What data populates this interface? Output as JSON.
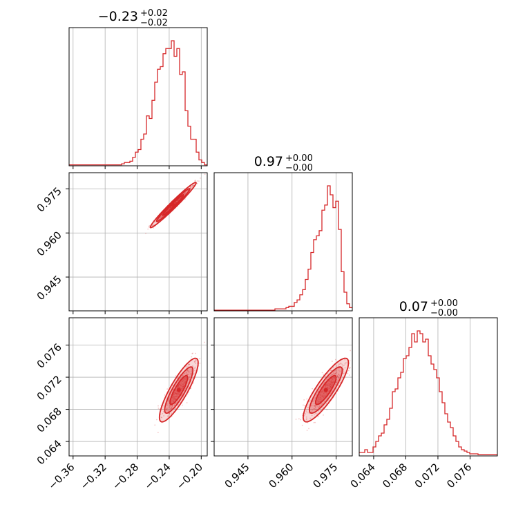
{
  "chart_data": {
    "type": "corner",
    "color": "#d62728",
    "grid": true,
    "parameters": [
      {
        "title_value": "−0.23",
        "title_plus": "+0.02",
        "title_minus": "−0.02",
        "range": [
          -0.365,
          -0.1925
        ],
        "ticks": [
          -0.36,
          -0.32,
          -0.28,
          -0.24,
          -0.2
        ],
        "tick_labels": [
          "−0.36",
          "−0.32",
          "−0.28",
          "−0.24",
          "−0.20"
        ]
      },
      {
        "title_value": "0.97",
        "title_plus": "+0.00",
        "title_minus": "−0.00",
        "range": [
          0.9335,
          0.9805
        ],
        "ticks": [
          0.945,
          0.96,
          0.975
        ],
        "tick_labels": [
          "0.945",
          "0.960",
          "0.975"
        ]
      },
      {
        "title_value": "0.07",
        "title_plus": "+0.00",
        "title_minus": "−0.00",
        "range": [
          0.0622,
          0.0794
        ],
        "ticks": [
          0.064,
          0.068,
          0.072,
          0.076
        ],
        "tick_labels": [
          "0.064",
          "0.068",
          "0.072",
          "0.076"
        ]
      }
    ],
    "histograms": [
      {
        "param": 0,
        "bins": [
          -0.365,
          -0.3615,
          -0.358,
          -0.3545,
          -0.351,
          -0.3475,
          -0.344,
          -0.3405,
          -0.337,
          -0.3335,
          -0.33,
          -0.3265,
          -0.323,
          -0.3195,
          -0.316,
          -0.3125,
          -0.309,
          -0.3055,
          -0.302,
          -0.2985,
          -0.295,
          -0.2915,
          -0.288,
          -0.2845,
          -0.281,
          -0.2775,
          -0.274,
          -0.2705,
          -0.267,
          -0.2635,
          -0.26,
          -0.2565,
          -0.253,
          -0.2495,
          -0.246,
          -0.2425,
          -0.239,
          -0.2355,
          -0.232,
          -0.2285,
          -0.225,
          -0.2215,
          -0.218,
          -0.2145,
          -0.211,
          -0.2075,
          -0.204,
          -0.2005,
          -0.197,
          -0.1935
        ],
        "counts": [
          0.002,
          0.002,
          0.002,
          0.002,
          0.002,
          0.002,
          0.002,
          0.002,
          0.002,
          0.002,
          0.002,
          0.002,
          0.002,
          0.002,
          0.002,
          0.002,
          0.002,
          0.002,
          0.002,
          0.01,
          0.02,
          0.02,
          0.03,
          0.06,
          0.1,
          0.12,
          0.2,
          0.24,
          0.38,
          0.36,
          0.5,
          0.64,
          0.74,
          0.76,
          0.86,
          0.9,
          0.9,
          0.96,
          0.84,
          0.9,
          0.7,
          0.72,
          0.42,
          0.3,
          0.2,
          0.2,
          0.1,
          0.04,
          0.02,
          0.002
        ]
      },
      {
        "param": 1,
        "bins": [
          0.9335,
          0.93444,
          0.93538,
          0.93632,
          0.93726,
          0.9382,
          0.93914,
          0.94008,
          0.94102,
          0.94196,
          0.9429,
          0.94384,
          0.94478,
          0.94572,
          0.94666,
          0.9476,
          0.94854,
          0.94948,
          0.95042,
          0.95136,
          0.9523,
          0.95324,
          0.95418,
          0.95512,
          0.95606,
          0.957,
          0.95794,
          0.95888,
          0.95982,
          0.96076,
          0.9617,
          0.96264,
          0.96358,
          0.96452,
          0.96546,
          0.9664,
          0.96734,
          0.96828,
          0.96922,
          0.97016,
          0.9711,
          0.97204,
          0.97298,
          0.97392,
          0.97486,
          0.9758,
          0.97674,
          0.97768,
          0.97862,
          0.97956,
          0.9805
        ],
        "counts": [
          0,
          0,
          0,
          0,
          0,
          0,
          0,
          0,
          0,
          0,
          0,
          0,
          0,
          0,
          0,
          0,
          0,
          0,
          0,
          0,
          0,
          0,
          0.01,
          0.01,
          0.01,
          0.01,
          0.02,
          0.03,
          0.03,
          0.06,
          0.08,
          0.12,
          0.16,
          0.24,
          0.32,
          0.45,
          0.55,
          0.58,
          0.62,
          0.78,
          0.82,
          0.97,
          0.9,
          0.8,
          0.85,
          0.63,
          0.3,
          0.14,
          0.05,
          0.02
        ]
      },
      {
        "param": 2,
        "bins": [
          0.0622,
          0.06254,
          0.06288,
          0.06322,
          0.06356,
          0.0639,
          0.06424,
          0.06458,
          0.06492,
          0.06526,
          0.0656,
          0.06594,
          0.06628,
          0.06662,
          0.06696,
          0.0673,
          0.06764,
          0.06798,
          0.06832,
          0.06866,
          0.069,
          0.06934,
          0.06968,
          0.07002,
          0.07036,
          0.0707,
          0.07104,
          0.07138,
          0.07172,
          0.07206,
          0.0724,
          0.07274,
          0.07308,
          0.07342,
          0.07376,
          0.0741,
          0.07444,
          0.07478,
          0.07512,
          0.07546,
          0.0758,
          0.07614,
          0.07648,
          0.07682,
          0.07716,
          0.0775,
          0.07784,
          0.07818,
          0.07852,
          0.07886
        ],
        "counts": [
          0.02,
          0.02,
          0.04,
          0.02,
          0.02,
          0.06,
          0.1,
          0.14,
          0.16,
          0.22,
          0.26,
          0.34,
          0.46,
          0.48,
          0.56,
          0.6,
          0.7,
          0.72,
          0.78,
          0.88,
          0.82,
          0.9,
          0.88,
          0.82,
          0.84,
          0.72,
          0.66,
          0.62,
          0.56,
          0.46,
          0.38,
          0.3,
          0.24,
          0.2,
          0.14,
          0.1,
          0.06,
          0.04,
          0.03,
          0.02,
          0.01,
          0.01,
          0.01,
          0.004,
          0.004,
          0.004,
          0.004,
          0.004,
          0.004,
          0.004
        ]
      }
    ],
    "pairs": [
      {
        "x_param": 0,
        "y_param": 1,
        "center": [
          -0.235,
          0.9695
        ],
        "sigma": [
          0.013,
          0.0035
        ],
        "correlation": 0.98
      },
      {
        "x_param": 0,
        "y_param": 2,
        "center": [
          -0.228,
          0.0704
        ],
        "sigma": [
          0.011,
          0.0018
        ],
        "correlation": 0.86
      },
      {
        "x_param": 1,
        "y_param": 2,
        "center": [
          0.9715,
          0.0704
        ],
        "sigma": [
          0.0035,
          0.0018
        ],
        "correlation": 0.86
      }
    ],
    "contour_levels": [
      1,
      1.6,
      2.2
    ]
  }
}
